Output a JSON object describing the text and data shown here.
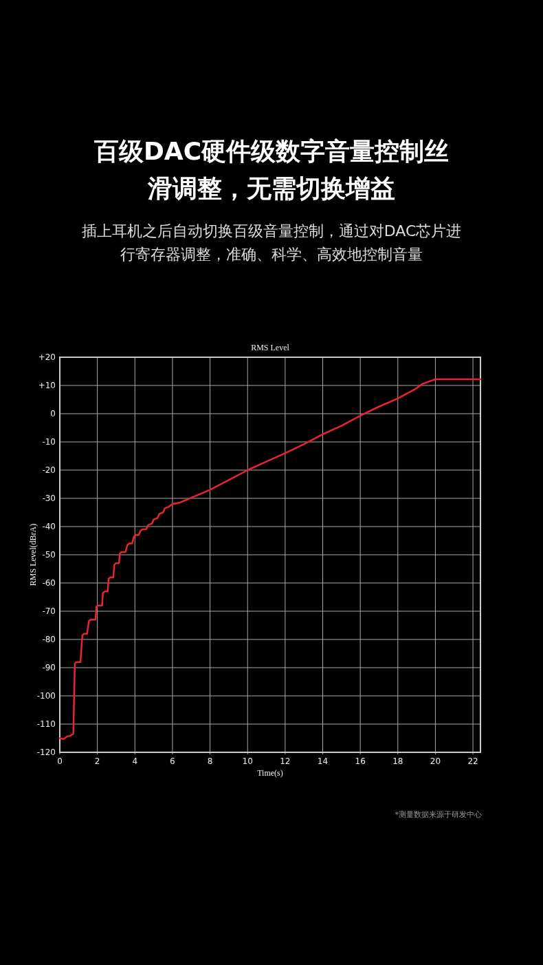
{
  "chart_data": {
    "type": "line",
    "title": "百级DAC硬件级数字音量控制丝滑调整，无需切换增益",
    "subtitle": "插上耳机之后自动切换百级音量控制，通过对DAC芯片进行寄存器调整，准确、科学、高效地控制音量",
    "annotations": [
      "RMS Level",
      "*测量数据来源于研发中心"
    ],
    "xlabel": "Time(s)",
    "ylabel": "RMS Level(dBrA)",
    "xlim": [
      0,
      22.4
    ],
    "ylim": [
      -120,
      20
    ],
    "xticks": [
      0,
      2,
      4,
      6,
      8,
      10,
      12,
      14,
      16,
      18,
      20,
      22
    ],
    "yticks": [
      {
        "value": 20,
        "label": "+20"
      },
      {
        "value": 10,
        "label": "+10"
      },
      0,
      {
        "value": -10,
        "label": "-10"
      },
      {
        "value": -20,
        "label": "-20"
      },
      {
        "value": -30,
        "label": "-30"
      },
      {
        "value": -40,
        "label": "-40"
      },
      {
        "value": -50,
        "label": "-50"
      },
      {
        "value": -60,
        "label": "-60"
      },
      {
        "value": -70,
        "label": "-70"
      },
      {
        "value": -80,
        "label": "-80"
      },
      {
        "value": -90,
        "label": "-90"
      },
      {
        "value": -100,
        "label": "-100"
      },
      {
        "value": -110,
        "label": "-110"
      },
      {
        "value": -120,
        "label": "-120"
      }
    ],
    "grid": true,
    "marker": "none",
    "line_style": "solid",
    "series": [
      {
        "color": "#e8242f",
        "x": [
          0,
          0.2,
          0.4,
          0.55,
          0.65,
          0.72,
          0.8,
          0.9,
          1.1,
          1.2,
          1.3,
          1.45,
          1.55,
          1.65,
          1.9,
          1.95,
          2.05,
          2.25,
          2.3,
          2.4,
          2.55,
          2.6,
          2.7,
          2.85,
          2.9,
          3.0,
          3.15,
          3.2,
          3.3,
          3.5,
          3.6,
          3.7,
          3.85,
          3.95,
          4.05,
          4.2,
          4.3,
          4.4,
          4.6,
          4.7,
          4.9,
          5.0,
          5.2,
          5.3,
          5.5,
          5.6,
          5.8,
          6.0,
          6.4,
          7,
          8,
          9,
          10,
          11,
          12,
          13,
          14,
          15,
          16,
          17,
          18,
          19,
          19.3,
          20,
          22.4
        ],
        "values": [
          -115,
          -115.3,
          -114.3,
          -114.2,
          -113.7,
          -113.5,
          -88.5,
          -88,
          -88,
          -78.5,
          -78,
          -78,
          -73.5,
          -73,
          -73,
          -68.3,
          -68,
          -68,
          -63.5,
          -63,
          -63,
          -58.5,
          -58,
          -58,
          -53.5,
          -53,
          -53,
          -49.5,
          -49,
          -49,
          -46.5,
          -46,
          -46,
          -43.5,
          -43,
          -43,
          -41.5,
          -41,
          -41,
          -39.5,
          -39,
          -37.5,
          -37,
          -35.5,
          -35,
          -33.5,
          -33,
          -32,
          -31.5,
          -29.8,
          -27,
          -23.5,
          -20,
          -17,
          -14,
          -10.8,
          -7.3,
          -4.3,
          -0.7,
          2.5,
          5.4,
          9,
          10.5,
          12.2,
          12.2
        ]
      }
    ]
  }
}
